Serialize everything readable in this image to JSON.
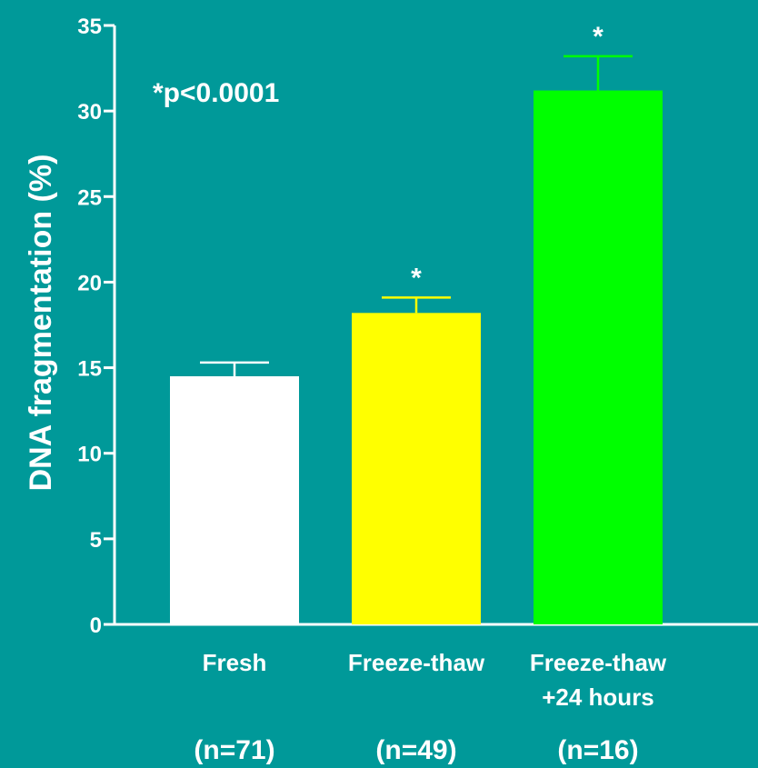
{
  "chart_data": {
    "type": "bar",
    "ylabel": "DNA fragmentation (%)",
    "ylim": [
      0,
      35
    ],
    "yticks": [
      0,
      5,
      10,
      15,
      20,
      25,
      30,
      35
    ],
    "annotation": "*p<0.0001",
    "grid": false,
    "categories": [
      {
        "label": [
          "Fresh"
        ],
        "n": "(n=71)",
        "value": 14.5,
        "error": 0.8,
        "color": "#ffffff",
        "marker": ""
      },
      {
        "label": [
          "Freeze-thaw"
        ],
        "n": "(n=49)",
        "value": 18.2,
        "error": 0.9,
        "color": "#ffff00",
        "marker": "*"
      },
      {
        "label": [
          "Freeze-thaw",
          "+24 hours"
        ],
        "n": "(n=16)",
        "value": 31.2,
        "error": 2.0,
        "color": "#00ff00",
        "marker": "*"
      }
    ],
    "colors": {
      "background": "#009999",
      "axis": "#ffffff",
      "text": "#ffffff"
    }
  }
}
